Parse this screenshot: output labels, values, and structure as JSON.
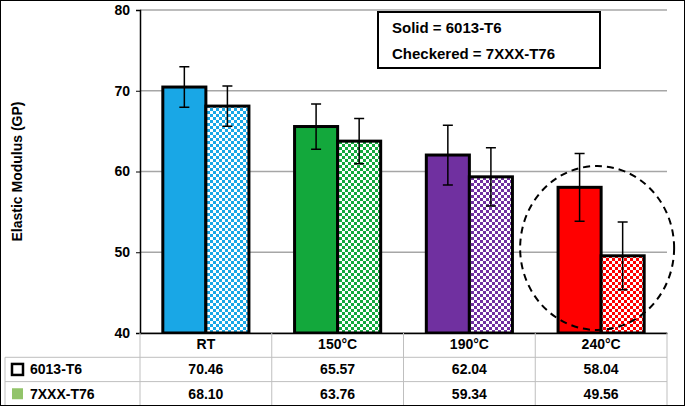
{
  "chart_data": {
    "type": "bar",
    "y_label": "Elastic Modulus (GP)",
    "annotations": [
      "Solid = 6013-T6",
      "Checkered = 7XXX-T76"
    ],
    "categories": [
      "RT",
      "150°C",
      "190°C",
      "240°C"
    ],
    "ylim": [
      40,
      80
    ],
    "yticks": [
      40,
      50,
      60,
      70,
      80
    ],
    "grid": true,
    "series": [
      {
        "name": "6013-T6",
        "values": [
          70.46,
          65.57,
          62.04,
          58.04
        ],
        "value_labels": [
          "70.46",
          "65.57",
          "62.04",
          "58.04"
        ],
        "errors": [
          2.5,
          2.8,
          3.7,
          4.2
        ],
        "colors": [
          "#19a7e6",
          "#13a83c",
          "#7030a0",
          "#ff0000"
        ]
      },
      {
        "name": "7XXX-T76",
        "values": [
          68.1,
          63.76,
          59.34,
          49.56
        ],
        "value_labels": [
          "68.10",
          "63.76",
          "59.34",
          "49.56"
        ],
        "errors": [
          2.5,
          2.8,
          3.6,
          4.2
        ],
        "colors": [
          "#19a7e6",
          "#13a83c",
          "#7030a0",
          "#ff0000"
        ]
      }
    ]
  }
}
